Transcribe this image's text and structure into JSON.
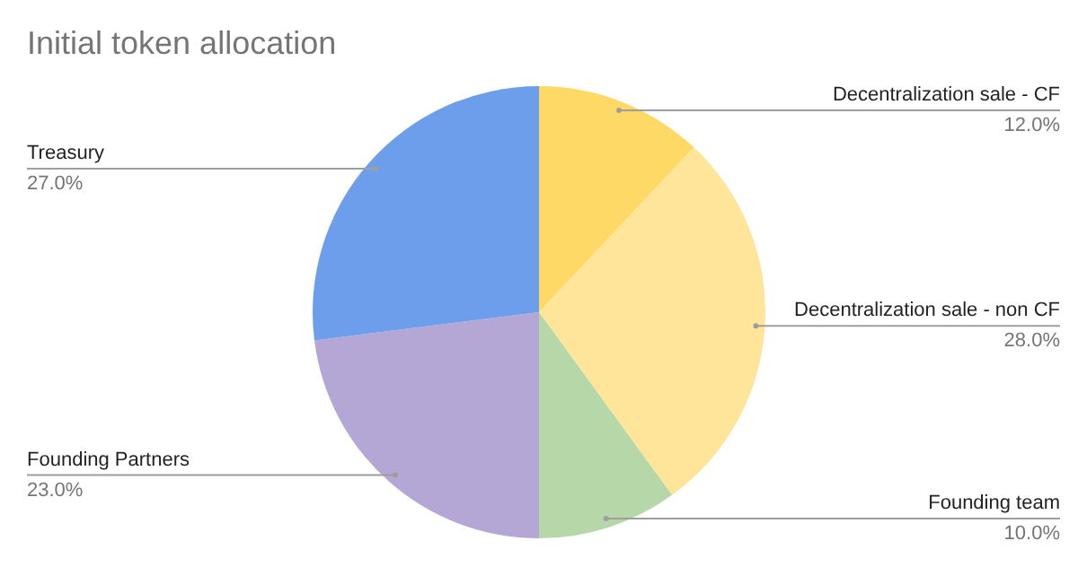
{
  "chart_data": {
    "type": "pie",
    "title": "Initial token allocation",
    "categories": [
      "Decentralization sale - CF",
      "Decentralization sale - non CF",
      "Founding team",
      "Founding Partners",
      "Treasury"
    ],
    "values": [
      12,
      28,
      10,
      23,
      27
    ],
    "value_labels": [
      "12.0%",
      "28.0%",
      "10.0%",
      "23.0%",
      "27.0%"
    ],
    "colors": [
      "#ffd966",
      "#ffe599",
      "#b6d7a8",
      "#b4a7d6",
      "#6d9eeb"
    ],
    "legend": false
  }
}
